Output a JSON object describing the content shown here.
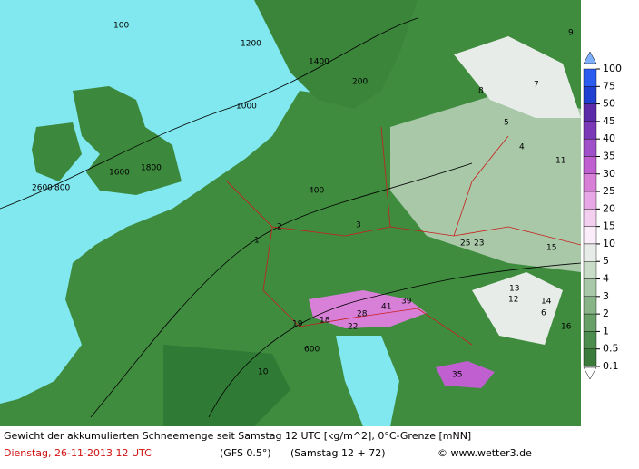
{
  "footer": {
    "line1": "Gewicht der akkumulierten Schneemenge seit Samstag 12 UTC [kg/m^2], 0°C-Grenze [mNN]",
    "date": "Dienstag, 26-11-2013  12 UTC",
    "model": "(GFS 0.5°)",
    "run": "(Samstag 12 + 72)",
    "site": "© www.wetter3.de"
  },
  "legend": {
    "levels": [
      100,
      75,
      50,
      45,
      40,
      35,
      30,
      25,
      20,
      15,
      10,
      5,
      4,
      3,
      2,
      1,
      0.5,
      0.1
    ],
    "colors": [
      "#2a5cf0",
      "#1e3fd0",
      "#5a2aa8",
      "#7a3ab8",
      "#a050c8",
      "#c060d0",
      "#d880d8",
      "#e8a8e8",
      "#f4d0f0",
      "#fbeefa",
      "#e8ece8",
      "#c8dcc8",
      "#a8c8a8",
      "#88b488",
      "#68a068",
      "#4c8c4c",
      "#3a7a3a"
    ]
  },
  "map": {
    "labels": [
      "1200",
      "1000",
      "1800",
      "2600",
      "800",
      "400",
      "1400",
      "600",
      "2",
      "1",
      "3",
      "8",
      "9",
      "5",
      "4",
      "11",
      "7",
      "6",
      "12",
      "13",
      "14",
      "15",
      "16",
      "18",
      "19",
      "22",
      "23",
      "25",
      "28",
      "39",
      "41",
      "35",
      "10",
      "100",
      "200",
      "1600"
    ]
  }
}
